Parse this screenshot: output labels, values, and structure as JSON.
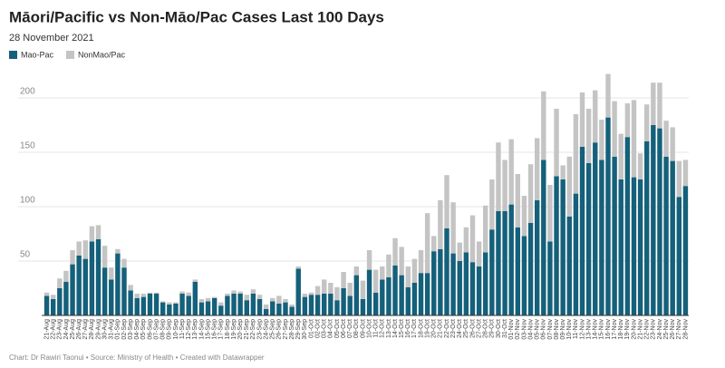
{
  "chart_data": {
    "type": "bar",
    "stacked": true,
    "title": "Māori/Pacific vs Non-Māo/Pac Cases Last 100 Days",
    "subtitle": "28 November 2021",
    "footer": "Chart: Dr Rawiri Taonui • Source: Ministry of Health • Created with Datawrapper",
    "categories": [
      "21-Aug",
      "22-Aug",
      "23-Aug",
      "24-Aug",
      "25-Aug",
      "26-Aug",
      "27-Aug",
      "28-Aug",
      "29-Aug",
      "30-Aug",
      "31-Aug",
      "01-Sep",
      "02-Sep",
      "03-Sep",
      "04-Sep",
      "05-Sep",
      "06-Sep",
      "07-Sep",
      "08-Sep",
      "09-Sep",
      "10-Sep",
      "11-Sep",
      "12-Sep",
      "13-Sep",
      "14-Sep",
      "15-Sep",
      "16-Sep",
      "17-Sep",
      "18-Sep",
      "19-Sep",
      "20-Sep",
      "21-Sep",
      "22-Sep",
      "23-Sep",
      "24-Sep",
      "25-Sep",
      "26-Sep",
      "27-Sep",
      "28-Sep",
      "29-Sep",
      "30-Sep",
      "01-Oct",
      "02-Oct",
      "03-Oct",
      "04-Oct",
      "05-Oct",
      "06-Oct",
      "07-Oct",
      "08-Oct",
      "09-Oct",
      "10-Oct",
      "11-Oct",
      "12-Oct",
      "13-Oct",
      "14-Oct",
      "15-Oct",
      "16-Oct",
      "17-Oct",
      "18-Oct",
      "19-Oct",
      "20-Oct",
      "21-Oct",
      "22-Oct",
      "23-Oct",
      "24-Oct",
      "25-Oct",
      "26-Oct",
      "27-Oct",
      "28-Oct",
      "29-Oct",
      "30-Oct",
      "31-Oct",
      "01-Nov",
      "02-Nov",
      "03-Nov",
      "04-Nov",
      "05-Nov",
      "06-Nov",
      "07-Nov",
      "08-Nov",
      "09-Nov",
      "10-Nov",
      "11-Nov",
      "12-Nov",
      "13-Nov",
      "14-Nov",
      "15-Nov",
      "16-Nov",
      "17-Nov",
      "18-Nov",
      "19-Nov",
      "20-Nov",
      "21-Nov",
      "22-Nov",
      "23-Nov",
      "24-Nov",
      "25-Nov",
      "26-Nov",
      "27-Nov",
      "28-Nov"
    ],
    "series": [
      {
        "name": "Mao-Pac",
        "color": "#15607a",
        "values": [
          18,
          15,
          25,
          31,
          47,
          55,
          52,
          68,
          70,
          44,
          33,
          57,
          44,
          23,
          16,
          17,
          20,
          20,
          12,
          10,
          11,
          20,
          18,
          31,
          12,
          13,
          16,
          9,
          18,
          20,
          20,
          14,
          20,
          15,
          6,
          13,
          11,
          12,
          8,
          43,
          17,
          19,
          19,
          20,
          20,
          14,
          25,
          18,
          37,
          15,
          42,
          21,
          33,
          35,
          46,
          37,
          26,
          30,
          39,
          39,
          59,
          61,
          80,
          57,
          50,
          58,
          49,
          45,
          58,
          79,
          96,
          96,
          102,
          81,
          73,
          85,
          106,
          143,
          68,
          128,
          125,
          91,
          112,
          155,
          140,
          159,
          143,
          182,
          146,
          125,
          164,
          127,
          125,
          160,
          175,
          172,
          146,
          142,
          109,
          119
        ]
      },
      {
        "name": "NonMao/Pac",
        "color": "#c4c4c4",
        "values": [
          3,
          4,
          9,
          10,
          13,
          13,
          17,
          14,
          13,
          20,
          11,
          4,
          8,
          5,
          4,
          3,
          1,
          1,
          1,
          2,
          1,
          2,
          3,
          2,
          3,
          3,
          1,
          3,
          2,
          3,
          2,
          5,
          4,
          4,
          4,
          3,
          7,
          3,
          2,
          2,
          3,
          2,
          8,
          13,
          10,
          12,
          15,
          12,
          8,
          17,
          18,
          21,
          12,
          21,
          25,
          26,
          19,
          22,
          21,
          55,
          14,
          45,
          49,
          47,
          17,
          23,
          43,
          23,
          43,
          46,
          63,
          47,
          60,
          49,
          37,
          54,
          57,
          63,
          52,
          62,
          13,
          55,
          73,
          50,
          50,
          48,
          37,
          40,
          51,
          42,
          31,
          71,
          24,
          34,
          39,
          42,
          33,
          31,
          33,
          24
        ]
      }
    ],
    "ylim": [
      0,
      225
    ],
    "yticks": [
      50,
      100,
      150,
      200
    ],
    "grid": true
  }
}
